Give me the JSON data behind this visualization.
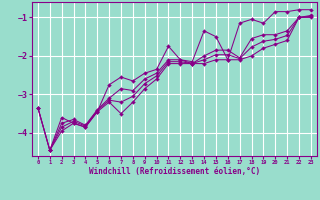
{
  "xlabel": "Windchill (Refroidissement éolien,°C)",
  "bg_color": "#99ddcc",
  "grid_color": "#ffffff",
  "line_color": "#880088",
  "xlim": [
    -0.5,
    23.5
  ],
  "ylim": [
    -4.6,
    -0.6
  ],
  "yticks": [
    -4,
    -3,
    -2,
    -1
  ],
  "xticks": [
    0,
    1,
    2,
    3,
    4,
    5,
    6,
    7,
    8,
    9,
    10,
    11,
    12,
    13,
    14,
    15,
    16,
    17,
    18,
    19,
    20,
    21,
    22,
    23
  ],
  "series": [
    [
      0,
      -3.35,
      1,
      -4.45,
      2,
      -3.6,
      3,
      -3.75,
      4,
      -3.85,
      5,
      -3.45,
      6,
      -2.75,
      7,
      -2.55,
      8,
      -2.65,
      9,
      -2.45,
      10,
      -2.35,
      11,
      -1.75,
      12,
      -2.1,
      13,
      -2.15,
      14,
      -1.35,
      15,
      -1.5,
      16,
      -2.1,
      17,
      -1.15,
      18,
      -1.05,
      19,
      -1.15,
      20,
      -0.85,
      21,
      -0.85,
      22,
      -0.8,
      23,
      -0.8
    ],
    [
      1,
      -4.45,
      2,
      -3.95,
      3,
      -3.75,
      4,
      -3.85,
      5,
      -3.45,
      6,
      -3.2,
      7,
      -3.5,
      8,
      -3.2,
      9,
      -2.85,
      10,
      -2.6,
      11,
      -2.2,
      12,
      -2.2,
      13,
      -2.2,
      14,
      -2.2,
      15,
      -2.1,
      16,
      -2.1,
      17,
      -2.1,
      18,
      -2.0,
      19,
      -1.8,
      20,
      -1.7,
      21,
      -1.6,
      22,
      -1.0,
      23,
      -1.0
    ],
    [
      0,
      -3.35,
      1,
      -4.45,
      2,
      -3.75,
      3,
      -3.65,
      4,
      -3.8,
      5,
      -3.4,
      6,
      -3.1,
      7,
      -2.85,
      8,
      -2.9,
      9,
      -2.6,
      10,
      -2.45,
      11,
      -2.1,
      12,
      -2.1,
      13,
      -2.2,
      14,
      -2.0,
      15,
      -1.85,
      16,
      -1.85,
      17,
      -2.05,
      18,
      -1.55,
      19,
      -1.45,
      20,
      -1.45,
      21,
      -1.35,
      22,
      -1.0,
      23,
      -0.95
    ],
    [
      0,
      -3.35,
      1,
      -4.45,
      2,
      -3.85,
      3,
      -3.7,
      4,
      -3.82,
      5,
      -3.42,
      6,
      -3.15,
      7,
      -3.2,
      8,
      -3.05,
      9,
      -2.72,
      10,
      -2.52,
      11,
      -2.15,
      12,
      -2.15,
      13,
      -2.2,
      14,
      -2.1,
      15,
      -1.97,
      16,
      -1.97,
      17,
      -2.07,
      18,
      -1.77,
      19,
      -1.62,
      20,
      -1.57,
      21,
      -1.47,
      22,
      -1.0,
      23,
      -0.97
    ]
  ]
}
